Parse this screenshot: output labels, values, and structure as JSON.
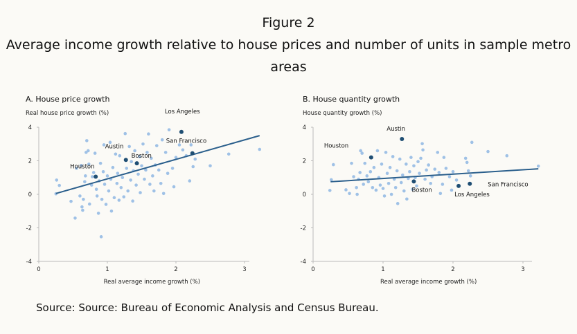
{
  "figure_label": "Figure 2",
  "title_line1": "Average income growth relative to house prices and number of units in sample metro",
  "title_line2": "areas",
  "source": "Source: Source: Bureau of Economic Analysis and Census Bureau.",
  "colors": {
    "point": "#9fc1e6",
    "highlight": "#1f4e73",
    "trend": "#2b5f8c",
    "axis": "#bbbbbb"
  },
  "chart_data": [
    {
      "type": "scatter",
      "title": "A. House price growth",
      "ylabel": "Real house price growth (%)",
      "xlabel": "Real average income growth (%)",
      "xlim": [
        0,
        3.3
      ],
      "ylim": [
        -4,
        4
      ],
      "xticks": [
        "0",
        "1",
        "2",
        "3"
      ],
      "yticks": [
        "4",
        "2",
        "0",
        "-2",
        "-4"
      ],
      "trend": [
        [
          0.25,
          0.05
        ],
        [
          3.22,
          3.5
        ]
      ],
      "highlights": [
        {
          "name": "Houston",
          "x": 0.83,
          "y": 1.05
        },
        {
          "name": "Austin",
          "x": 1.27,
          "y": 2.05
        },
        {
          "name": "Boston",
          "x": 1.43,
          "y": 1.85
        },
        {
          "name": "Los Angeles",
          "x": 2.08,
          "y": 3.72
        },
        {
          "name": "San Francisco",
          "x": 2.24,
          "y": 2.45
        }
      ],
      "points": [
        [
          0.25,
          0.03
        ],
        [
          0.26,
          0.85
        ],
        [
          0.3,
          0.53
        ],
        [
          0.47,
          -0.42
        ],
        [
          0.53,
          -1.42
        ],
        [
          0.55,
          1.55
        ],
        [
          0.6,
          -0.1
        ],
        [
          0.62,
          1.72
        ],
        [
          0.63,
          -0.75
        ],
        [
          0.64,
          -0.95
        ],
        [
          0.65,
          -0.3
        ],
        [
          0.67,
          0.75
        ],
        [
          0.68,
          1.1
        ],
        [
          0.69,
          2.5
        ],
        [
          0.7,
          3.2
        ],
        [
          0.72,
          2.6
        ],
        [
          0.73,
          1.8
        ],
        [
          0.74,
          -0.58
        ],
        [
          0.77,
          0.55
        ],
        [
          0.78,
          1.05
        ],
        [
          0.8,
          1.3
        ],
        [
          0.82,
          2.45
        ],
        [
          0.84,
          0.3
        ],
        [
          0.85,
          -0.1
        ],
        [
          0.87,
          -1.13
        ],
        [
          0.88,
          0.8
        ],
        [
          0.9,
          1.85
        ],
        [
          0.91,
          -2.53
        ],
        [
          0.92,
          -0.3
        ],
        [
          0.94,
          1.35
        ],
        [
          0.95,
          2.95
        ],
        [
          0.96,
          0.6
        ],
        [
          0.98,
          -0.6
        ],
        [
          1.0,
          1.1
        ],
        [
          1.02,
          0.2
        ],
        [
          1.04,
          3.1
        ],
        [
          1.05,
          0.9
        ],
        [
          1.06,
          -1.0
        ],
        [
          1.08,
          1.6
        ],
        [
          1.1,
          -0.2
        ],
        [
          1.12,
          2.4
        ],
        [
          1.14,
          0.65
        ],
        [
          1.15,
          1.25
        ],
        [
          1.17,
          -0.35
        ],
        [
          1.18,
          2.3
        ],
        [
          1.2,
          0.4
        ],
        [
          1.22,
          1.0
        ],
        [
          1.24,
          -0.15
        ],
        [
          1.26,
          3.62
        ],
        [
          1.28,
          1.55
        ],
        [
          1.3,
          0.2
        ],
        [
          1.32,
          2.85
        ],
        [
          1.34,
          0.85
        ],
        [
          1.35,
          1.95
        ],
        [
          1.37,
          -0.4
        ],
        [
          1.38,
          1.4
        ],
        [
          1.4,
          2.6
        ],
        [
          1.42,
          0.55
        ],
        [
          1.45,
          1.2
        ],
        [
          1.47,
          2.25
        ],
        [
          1.48,
          0.1
        ],
        [
          1.5,
          1.7
        ],
        [
          1.52,
          3.0
        ],
        [
          1.54,
          0.9
        ],
        [
          1.56,
          1.45
        ],
        [
          1.58,
          2.5
        ],
        [
          1.6,
          3.6
        ],
        [
          1.62,
          0.6
        ],
        [
          1.64,
          2.15
        ],
        [
          1.66,
          1.1
        ],
        [
          1.68,
          0.2
        ],
        [
          1.7,
          1.75
        ],
        [
          1.72,
          2.9
        ],
        [
          1.75,
          1.45
        ],
        [
          1.78,
          0.65
        ],
        [
          1.8,
          3.25
        ],
        [
          1.82,
          0.05
        ],
        [
          1.85,
          2.5
        ],
        [
          1.88,
          1.25
        ],
        [
          1.9,
          3.85
        ],
        [
          1.95,
          1.55
        ],
        [
          1.97,
          0.45
        ],
        [
          2.0,
          2.2
        ],
        [
          2.05,
          2.95
        ],
        [
          2.1,
          2.65
        ],
        [
          2.15,
          2.3
        ],
        [
          2.2,
          0.8
        ],
        [
          2.22,
          2.95
        ],
        [
          2.25,
          1.65
        ],
        [
          2.28,
          2.1
        ],
        [
          2.5,
          1.7
        ],
        [
          2.77,
          2.4
        ],
        [
          3.22,
          2.68
        ]
      ]
    },
    {
      "type": "scatter",
      "title": "B. House quantity growth",
      "ylabel": "House quantity growth (%)",
      "xlabel": "Real average income growth (%)",
      "xlim": [
        0,
        3.3
      ],
      "ylim": [
        -4,
        4
      ],
      "xticks": [
        "0",
        "1",
        "2",
        "3"
      ],
      "yticks": [
        "4",
        "2",
        "0",
        "-2",
        "-4"
      ],
      "trend": [
        [
          0.25,
          0.75
        ],
        [
          3.22,
          1.52
        ]
      ],
      "highlights": [
        {
          "name": "Houston",
          "x": 0.83,
          "y": 2.2
        },
        {
          "name": "Austin",
          "x": 1.27,
          "y": 3.3
        },
        {
          "name": "Boston",
          "x": 1.44,
          "y": 0.77
        },
        {
          "name": "Los Angeles",
          "x": 2.08,
          "y": 0.5
        },
        {
          "name": "San Francisco",
          "x": 2.24,
          "y": 0.63
        }
      ],
      "points": [
        [
          0.24,
          0.23
        ],
        [
          0.26,
          0.87
        ],
        [
          0.29,
          1.77
        ],
        [
          0.47,
          0.27
        ],
        [
          0.52,
          0.05
        ],
        [
          0.55,
          1.85
        ],
        [
          0.58,
          1.05
        ],
        [
          0.62,
          0.4
        ],
        [
          0.63,
          0.0
        ],
        [
          0.65,
          0.9
        ],
        [
          0.67,
          1.3
        ],
        [
          0.68,
          2.6
        ],
        [
          0.7,
          2.45
        ],
        [
          0.72,
          0.6
        ],
        [
          0.74,
          1.85
        ],
        [
          0.77,
          1.1
        ],
        [
          0.79,
          0.75
        ],
        [
          0.82,
          1.35
        ],
        [
          0.85,
          0.4
        ],
        [
          0.87,
          1.6
        ],
        [
          0.9,
          0.25
        ],
        [
          0.92,
          2.6
        ],
        [
          0.94,
          1.0
        ],
        [
          0.96,
          0.55
        ],
        [
          0.98,
          1.8
        ],
        [
          1.0,
          0.35
        ],
        [
          1.02,
          -0.1
        ],
        [
          1.04,
          2.5
        ],
        [
          1.06,
          1.25
        ],
        [
          1.08,
          0.65
        ],
        [
          1.1,
          1.6
        ],
        [
          1.12,
          0.0
        ],
        [
          1.14,
          2.25
        ],
        [
          1.16,
          0.9
        ],
        [
          1.18,
          0.4
        ],
        [
          1.2,
          1.4
        ],
        [
          1.21,
          -0.55
        ],
        [
          1.24,
          2.1
        ],
        [
          1.26,
          0.7
        ],
        [
          1.28,
          1.15
        ],
        [
          1.3,
          0.2
        ],
        [
          1.33,
          1.8
        ],
        [
          1.34,
          -0.28
        ],
        [
          1.36,
          0.95
        ],
        [
          1.38,
          1.35
        ],
        [
          1.4,
          2.2
        ],
        [
          1.42,
          0.3
        ],
        [
          1.44,
          1.7
        ],
        [
          1.46,
          1.0
        ],
        [
          1.48,
          0.5
        ],
        [
          1.5,
          1.95
        ],
        [
          1.52,
          1.25
        ],
        [
          1.54,
          2.15
        ],
        [
          1.56,
          3.02
        ],
        [
          1.57,
          2.65
        ],
        [
          1.6,
          0.9
        ],
        [
          1.62,
          1.45
        ],
        [
          1.65,
          1.75
        ],
        [
          1.68,
          0.65
        ],
        [
          1.7,
          1.05
        ],
        [
          1.74,
          1.5
        ],
        [
          1.78,
          2.5
        ],
        [
          1.8,
          1.3
        ],
        [
          1.82,
          0.05
        ],
        [
          1.85,
          0.6
        ],
        [
          1.87,
          2.2
        ],
        [
          1.9,
          1.55
        ],
        [
          1.95,
          1.05
        ],
        [
          1.98,
          0.25
        ],
        [
          2.0,
          1.35
        ],
        [
          2.05,
          0.85
        ],
        [
          2.18,
          2.15
        ],
        [
          2.2,
          1.9
        ],
        [
          2.22,
          1.4
        ],
        [
          2.25,
          1.1
        ],
        [
          2.27,
          3.1
        ],
        [
          2.5,
          2.55
        ],
        [
          2.77,
          2.3
        ],
        [
          3.22,
          1.68
        ]
      ]
    }
  ]
}
